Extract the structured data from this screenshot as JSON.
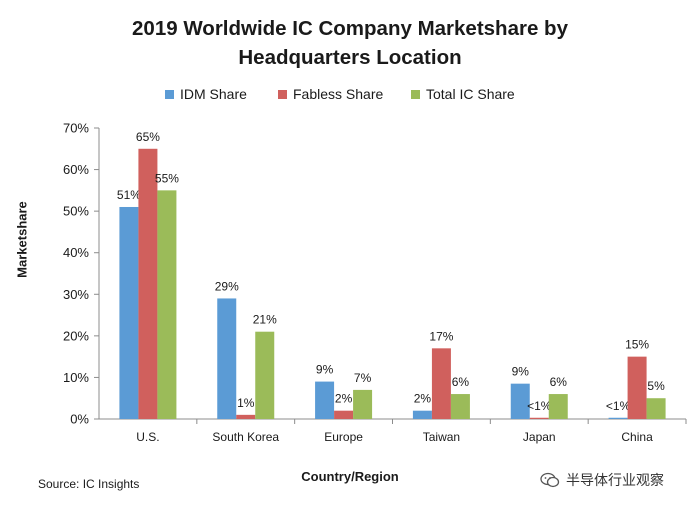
{
  "chart_data": {
    "type": "bar",
    "title_line1": "2019 Worldwide IC Company Marketshare by",
    "title_line2": "Headquarters Location",
    "xlabel": "Country/Region",
    "ylabel": "Marketshare",
    "ylim": [
      0,
      70
    ],
    "yticks": [
      "0%",
      "10%",
      "20%",
      "30%",
      "40%",
      "50%",
      "60%",
      "70%"
    ],
    "categories": [
      "U.S.",
      "South Korea",
      "Europe",
      "Taiwan",
      "Japan",
      "China"
    ],
    "series": [
      {
        "name": "IDM Share",
        "color": "#5b9bd5",
        "values": [
          51,
          29,
          9,
          2,
          8.5,
          0.3
        ],
        "labels": [
          "51%",
          "29%",
          "9%",
          "2%",
          "9%",
          "<1%"
        ]
      },
      {
        "name": "Fabless Share",
        "color": "#d0605d",
        "values": [
          65,
          1,
          2,
          17,
          0.3,
          15
        ],
        "labels": [
          "65%",
          "1%",
          "2%",
          "17%",
          "<1%",
          "15%"
        ]
      },
      {
        "name": "Total IC Share",
        "color": "#9bbb59",
        "values": [
          55,
          21,
          7,
          6,
          6,
          5
        ],
        "labels": [
          "55%",
          "21%",
          "7%",
          "6%",
          "6%",
          "5%"
        ]
      }
    ]
  },
  "source": "Source: IC Insights",
  "watermark": "半导体行业观察"
}
